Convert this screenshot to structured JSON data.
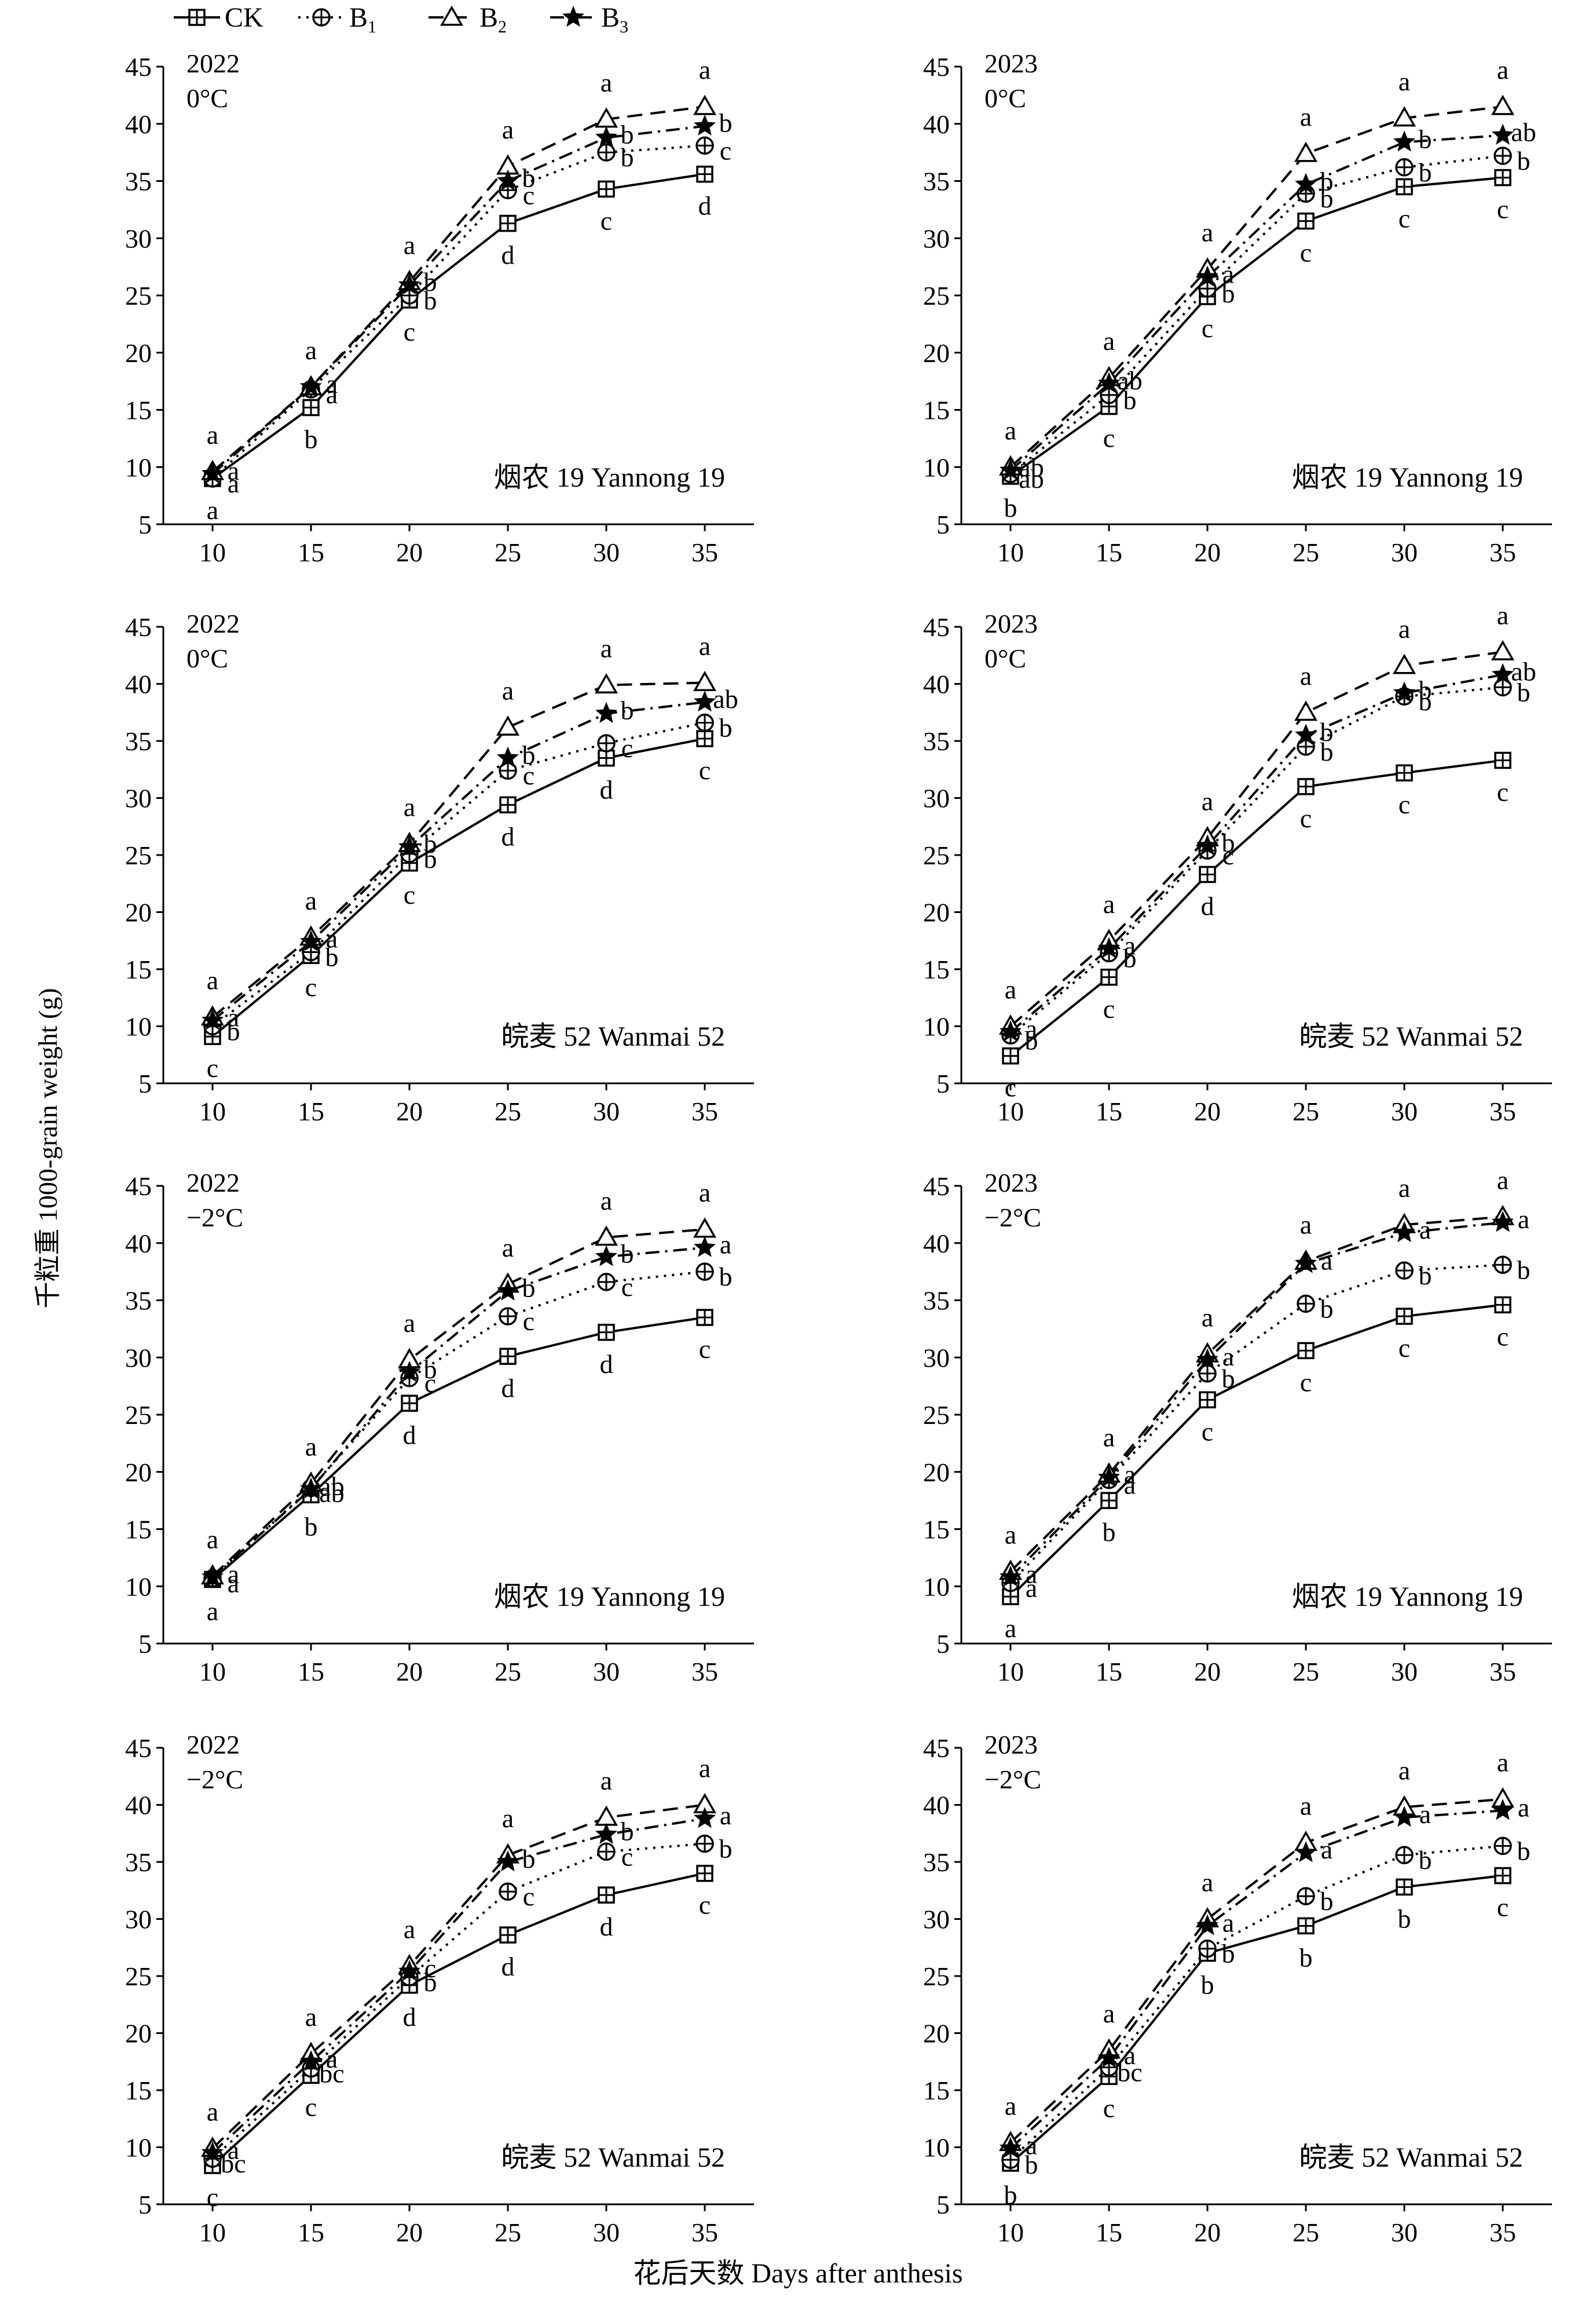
{
  "y_axis_label": "千粒重 1000-grain weight (g)",
  "x_axis_label": "花后天数 Days after anthesis",
  "legend": [
    {
      "label": "CK",
      "sub": "",
      "marker": "square",
      "dash": "solid"
    },
    {
      "label": "B",
      "sub": "1",
      "marker": "circle",
      "dash": "dot"
    },
    {
      "label": "B",
      "sub": "2",
      "marker": "triangle",
      "dash": "dash"
    },
    {
      "label": "B",
      "sub": "3",
      "marker": "star",
      "dash": "dashdot"
    }
  ],
  "chart_data": [
    {
      "type": "line",
      "year": "2022",
      "temp": "0°C",
      "cultivar": "烟农 19 Yannong 19",
      "x": [
        10,
        15,
        20,
        25,
        30,
        35
      ],
      "xticks": [
        "10",
        "15",
        "20",
        "25",
        "30",
        "35"
      ],
      "ylim": [
        5,
        45
      ],
      "yticks": [
        "5",
        "10",
        "15",
        "20",
        "25",
        "30",
        "35",
        "40",
        "45"
      ],
      "series": [
        {
          "name": "CK",
          "values": [
            9.0,
            15.2,
            24.6,
            31.3,
            34.3,
            35.6
          ],
          "labels": [
            "a",
            "b",
            "c",
            "d",
            "c",
            "d"
          ]
        },
        {
          "name": "B1",
          "values": [
            9.0,
            16.8,
            25.0,
            34.2,
            37.5,
            38.1
          ],
          "labels": [
            "a",
            "a",
            "b",
            "c",
            "b",
            "c"
          ]
        },
        {
          "name": "B2",
          "values": [
            9.6,
            17.0,
            26.2,
            36.3,
            40.4,
            41.5
          ],
          "labels": [
            "a",
            "a",
            "a",
            "a",
            "a",
            "a"
          ]
        },
        {
          "name": "B3",
          "values": [
            9.4,
            17.0,
            25.9,
            35.0,
            38.8,
            39.8
          ],
          "labels": [
            "a",
            "a",
            "b",
            "b",
            "b",
            "b"
          ]
        }
      ]
    },
    {
      "type": "line",
      "year": "2023",
      "temp": "0°C",
      "cultivar": "烟农 19 Yannong 19",
      "x": [
        10,
        15,
        20,
        25,
        30,
        35
      ],
      "xticks": [
        "10",
        "15",
        "20",
        "25",
        "30",
        "35"
      ],
      "ylim": [
        5,
        45
      ],
      "yticks": [
        "5",
        "10",
        "15",
        "20",
        "25",
        "30",
        "35",
        "40",
        "45"
      ],
      "series": [
        {
          "name": "CK",
          "values": [
            9.2,
            15.3,
            24.9,
            31.5,
            34.5,
            35.3
          ],
          "labels": [
            "b",
            "c",
            "c",
            "c",
            "c",
            "c"
          ]
        },
        {
          "name": "B1",
          "values": [
            9.4,
            16.3,
            25.6,
            33.9,
            36.2,
            37.2
          ],
          "labels": [
            "ab",
            "b",
            "b",
            "b",
            "b",
            "b"
          ]
        },
        {
          "name": "B2",
          "values": [
            10.0,
            17.8,
            27.3,
            37.4,
            40.5,
            41.5
          ],
          "labels": [
            "a",
            "a",
            "a",
            "a",
            "a",
            "a"
          ]
        },
        {
          "name": "B3",
          "values": [
            9.7,
            17.3,
            26.6,
            34.7,
            38.4,
            39.0
          ],
          "labels": [
            "ab",
            "ab",
            "a",
            "b",
            "b",
            "ab"
          ]
        }
      ]
    },
    {
      "type": "line",
      "year": "2022",
      "temp": "0°C",
      "cultivar": "皖麦 52 Wanmai 52",
      "x": [
        10,
        15,
        20,
        25,
        30,
        35
      ],
      "xticks": [
        "10",
        "15",
        "20",
        "25",
        "30",
        "35"
      ],
      "ylim": [
        5,
        45
      ],
      "yticks": [
        "5",
        "10",
        "15",
        "20",
        "25",
        "30",
        "35",
        "40",
        "45"
      ],
      "series": [
        {
          "name": "CK",
          "values": [
            9.1,
            16.2,
            24.3,
            29.4,
            33.5,
            35.2
          ],
          "labels": [
            "c",
            "c",
            "c",
            "d",
            "d",
            "c"
          ]
        },
        {
          "name": "B1",
          "values": [
            10.0,
            16.5,
            25.1,
            32.4,
            34.8,
            36.6
          ],
          "labels": [
            "b",
            "b",
            "b",
            "c",
            "c",
            "b"
          ]
        },
        {
          "name": "B2",
          "values": [
            10.8,
            17.8,
            26.0,
            36.2,
            39.9,
            40.1
          ],
          "labels": [
            "a",
            "a",
            "a",
            "a",
            "a",
            "a"
          ]
        },
        {
          "name": "B3",
          "values": [
            10.5,
            17.4,
            25.7,
            33.5,
            37.4,
            38.4
          ],
          "labels": [
            "a",
            "a",
            "b",
            "b",
            "b",
            "ab"
          ]
        }
      ]
    },
    {
      "type": "line",
      "year": "2023",
      "temp": "0°C",
      "cultivar": "皖麦 52 Wanmai 52",
      "x": [
        10,
        15,
        20,
        25,
        30,
        35
      ],
      "xticks": [
        "10",
        "15",
        "20",
        "25",
        "30",
        "35"
      ],
      "ylim": [
        5,
        45
      ],
      "yticks": [
        "5",
        "10",
        "15",
        "20",
        "25",
        "30",
        "35",
        "40",
        "45"
      ],
      "series": [
        {
          "name": "CK",
          "values": [
            7.4,
            14.3,
            23.3,
            31.0,
            32.2,
            33.3
          ],
          "labels": [
            "c",
            "c",
            "d",
            "c",
            "c",
            "c"
          ]
        },
        {
          "name": "B1",
          "values": [
            9.2,
            16.4,
            25.4,
            34.5,
            38.9,
            39.7
          ],
          "labels": [
            "b",
            "b",
            "c",
            "b",
            "b",
            "b"
          ]
        },
        {
          "name": "B2",
          "values": [
            10.0,
            17.5,
            26.5,
            37.5,
            41.6,
            42.8
          ],
          "labels": [
            "a",
            "a",
            "a",
            "a",
            "a",
            "a"
          ]
        },
        {
          "name": "B3",
          "values": [
            9.5,
            16.8,
            25.8,
            35.5,
            39.2,
            40.8
          ],
          "labels": [
            "a",
            "a",
            "b",
            "b",
            "b",
            "ab"
          ]
        }
      ]
    },
    {
      "type": "line",
      "year": "2022",
      "temp": "−2°C",
      "cultivar": "烟农 19 Yannong 19",
      "x": [
        10,
        15,
        20,
        25,
        30,
        35
      ],
      "xticks": [
        "10",
        "15",
        "20",
        "25",
        "30",
        "35"
      ],
      "ylim": [
        5,
        45
      ],
      "yticks": [
        "5",
        "10",
        "15",
        "20",
        "25",
        "30",
        "35",
        "40",
        "45"
      ],
      "series": [
        {
          "name": "CK",
          "values": [
            10.6,
            18.0,
            26.0,
            30.1,
            32.2,
            33.5
          ],
          "labels": [
            "a",
            "b",
            "d",
            "d",
            "d",
            "c"
          ]
        },
        {
          "name": "B1",
          "values": [
            10.7,
            18.6,
            28.2,
            33.6,
            36.6,
            37.5
          ],
          "labels": [
            "a",
            "ab",
            "c",
            "c",
            "c",
            "b"
          ]
        },
        {
          "name": "B2",
          "values": [
            10.9,
            19.0,
            29.8,
            36.4,
            40.5,
            41.2
          ],
          "labels": [
            "a",
            "a",
            "a",
            "a",
            "a",
            "a"
          ]
        },
        {
          "name": "B3",
          "values": [
            10.8,
            18.5,
            28.7,
            35.8,
            38.8,
            39.6
          ],
          "labels": [
            "a",
            "ab",
            "b",
            "b",
            "b",
            "a"
          ]
        }
      ]
    },
    {
      "type": "line",
      "year": "2023",
      "temp": "−2°C",
      "cultivar": "烟农 19 Yannong 19",
      "x": [
        10,
        15,
        20,
        25,
        30,
        35
      ],
      "xticks": [
        "10",
        "15",
        "20",
        "25",
        "30",
        "35"
      ],
      "ylim": [
        5,
        45
      ],
      "yticks": [
        "5",
        "10",
        "15",
        "20",
        "25",
        "30",
        "35",
        "40",
        "45"
      ],
      "series": [
        {
          "name": "CK",
          "values": [
            9.1,
            17.5,
            26.3,
            30.6,
            33.6,
            34.6
          ],
          "labels": [
            "a",
            "b",
            "c",
            "c",
            "c",
            "c"
          ]
        },
        {
          "name": "B1",
          "values": [
            10.3,
            19.3,
            28.6,
            34.7,
            37.6,
            38.1
          ],
          "labels": [
            "a",
            "a",
            "b",
            "b",
            "b",
            "b"
          ]
        },
        {
          "name": "B2",
          "values": [
            11.3,
            19.8,
            30.3,
            38.4,
            41.6,
            42.3
          ],
          "labels": [
            "a",
            "a",
            "a",
            "a",
            "a",
            "a"
          ]
        },
        {
          "name": "B3",
          "values": [
            10.8,
            19.5,
            29.8,
            38.2,
            40.9,
            41.8
          ],
          "labels": [
            "a",
            "a",
            "a",
            "a",
            "a",
            "a"
          ]
        }
      ]
    },
    {
      "type": "line",
      "year": "2022",
      "temp": "−2°C",
      "cultivar": "皖麦 52 Wanmai 52",
      "x": [
        10,
        15,
        20,
        25,
        30,
        35
      ],
      "xticks": [
        "10",
        "15",
        "20",
        "25",
        "30",
        "35"
      ],
      "ylim": [
        5,
        45
      ],
      "yticks": [
        "5",
        "10",
        "15",
        "20",
        "25",
        "30",
        "35",
        "40",
        "45"
      ],
      "series": [
        {
          "name": "CK",
          "values": [
            8.4,
            16.3,
            24.2,
            28.6,
            32.1,
            34.0
          ],
          "labels": [
            "c",
            "c",
            "d",
            "d",
            "d",
            "c"
          ]
        },
        {
          "name": "B1",
          "values": [
            9.0,
            16.9,
            24.9,
            32.4,
            35.9,
            36.6
          ],
          "labels": [
            "bc",
            "bc",
            "b",
            "c",
            "c",
            "b"
          ]
        },
        {
          "name": "B2",
          "values": [
            9.9,
            18.2,
            25.9,
            35.6,
            38.9,
            40.0
          ],
          "labels": [
            "a",
            "a",
            "a",
            "a",
            "a",
            "a"
          ]
        },
        {
          "name": "B3",
          "values": [
            9.5,
            17.5,
            25.4,
            35.0,
            37.4,
            38.8
          ],
          "labels": [
            "a",
            "a",
            "c",
            "b",
            "b",
            "a"
          ]
        }
      ]
    },
    {
      "type": "line",
      "year": "2023",
      "temp": "−2°C",
      "cultivar": "皖麦 52 Wanmai 52",
      "x": [
        10,
        15,
        20,
        25,
        30,
        35
      ],
      "xticks": [
        "10",
        "15",
        "20",
        "25",
        "30",
        "35"
      ],
      "ylim": [
        5,
        45
      ],
      "yticks": [
        "5",
        "10",
        "15",
        "20",
        "25",
        "30",
        "35",
        "40",
        "45"
      ],
      "series": [
        {
          "name": "CK",
          "values": [
            8.6,
            16.2,
            27.0,
            29.4,
            32.8,
            33.8
          ],
          "labels": [
            "b",
            "c",
            "b",
            "b",
            "b",
            "c"
          ]
        },
        {
          "name": "B1",
          "values": [
            8.9,
            17.0,
            27.4,
            32.0,
            35.6,
            36.4
          ],
          "labels": [
            "b",
            "bc",
            "b",
            "b",
            "b",
            "b"
          ]
        },
        {
          "name": "B2",
          "values": [
            10.4,
            18.5,
            30.0,
            36.7,
            39.8,
            40.5
          ],
          "labels": [
            "a",
            "a",
            "a",
            "a",
            "a",
            "a"
          ]
        },
        {
          "name": "B3",
          "values": [
            9.9,
            17.8,
            29.4,
            35.8,
            38.9,
            39.5
          ],
          "labels": [
            "a",
            "a",
            "a",
            "a",
            "a",
            "a"
          ]
        }
      ]
    }
  ]
}
